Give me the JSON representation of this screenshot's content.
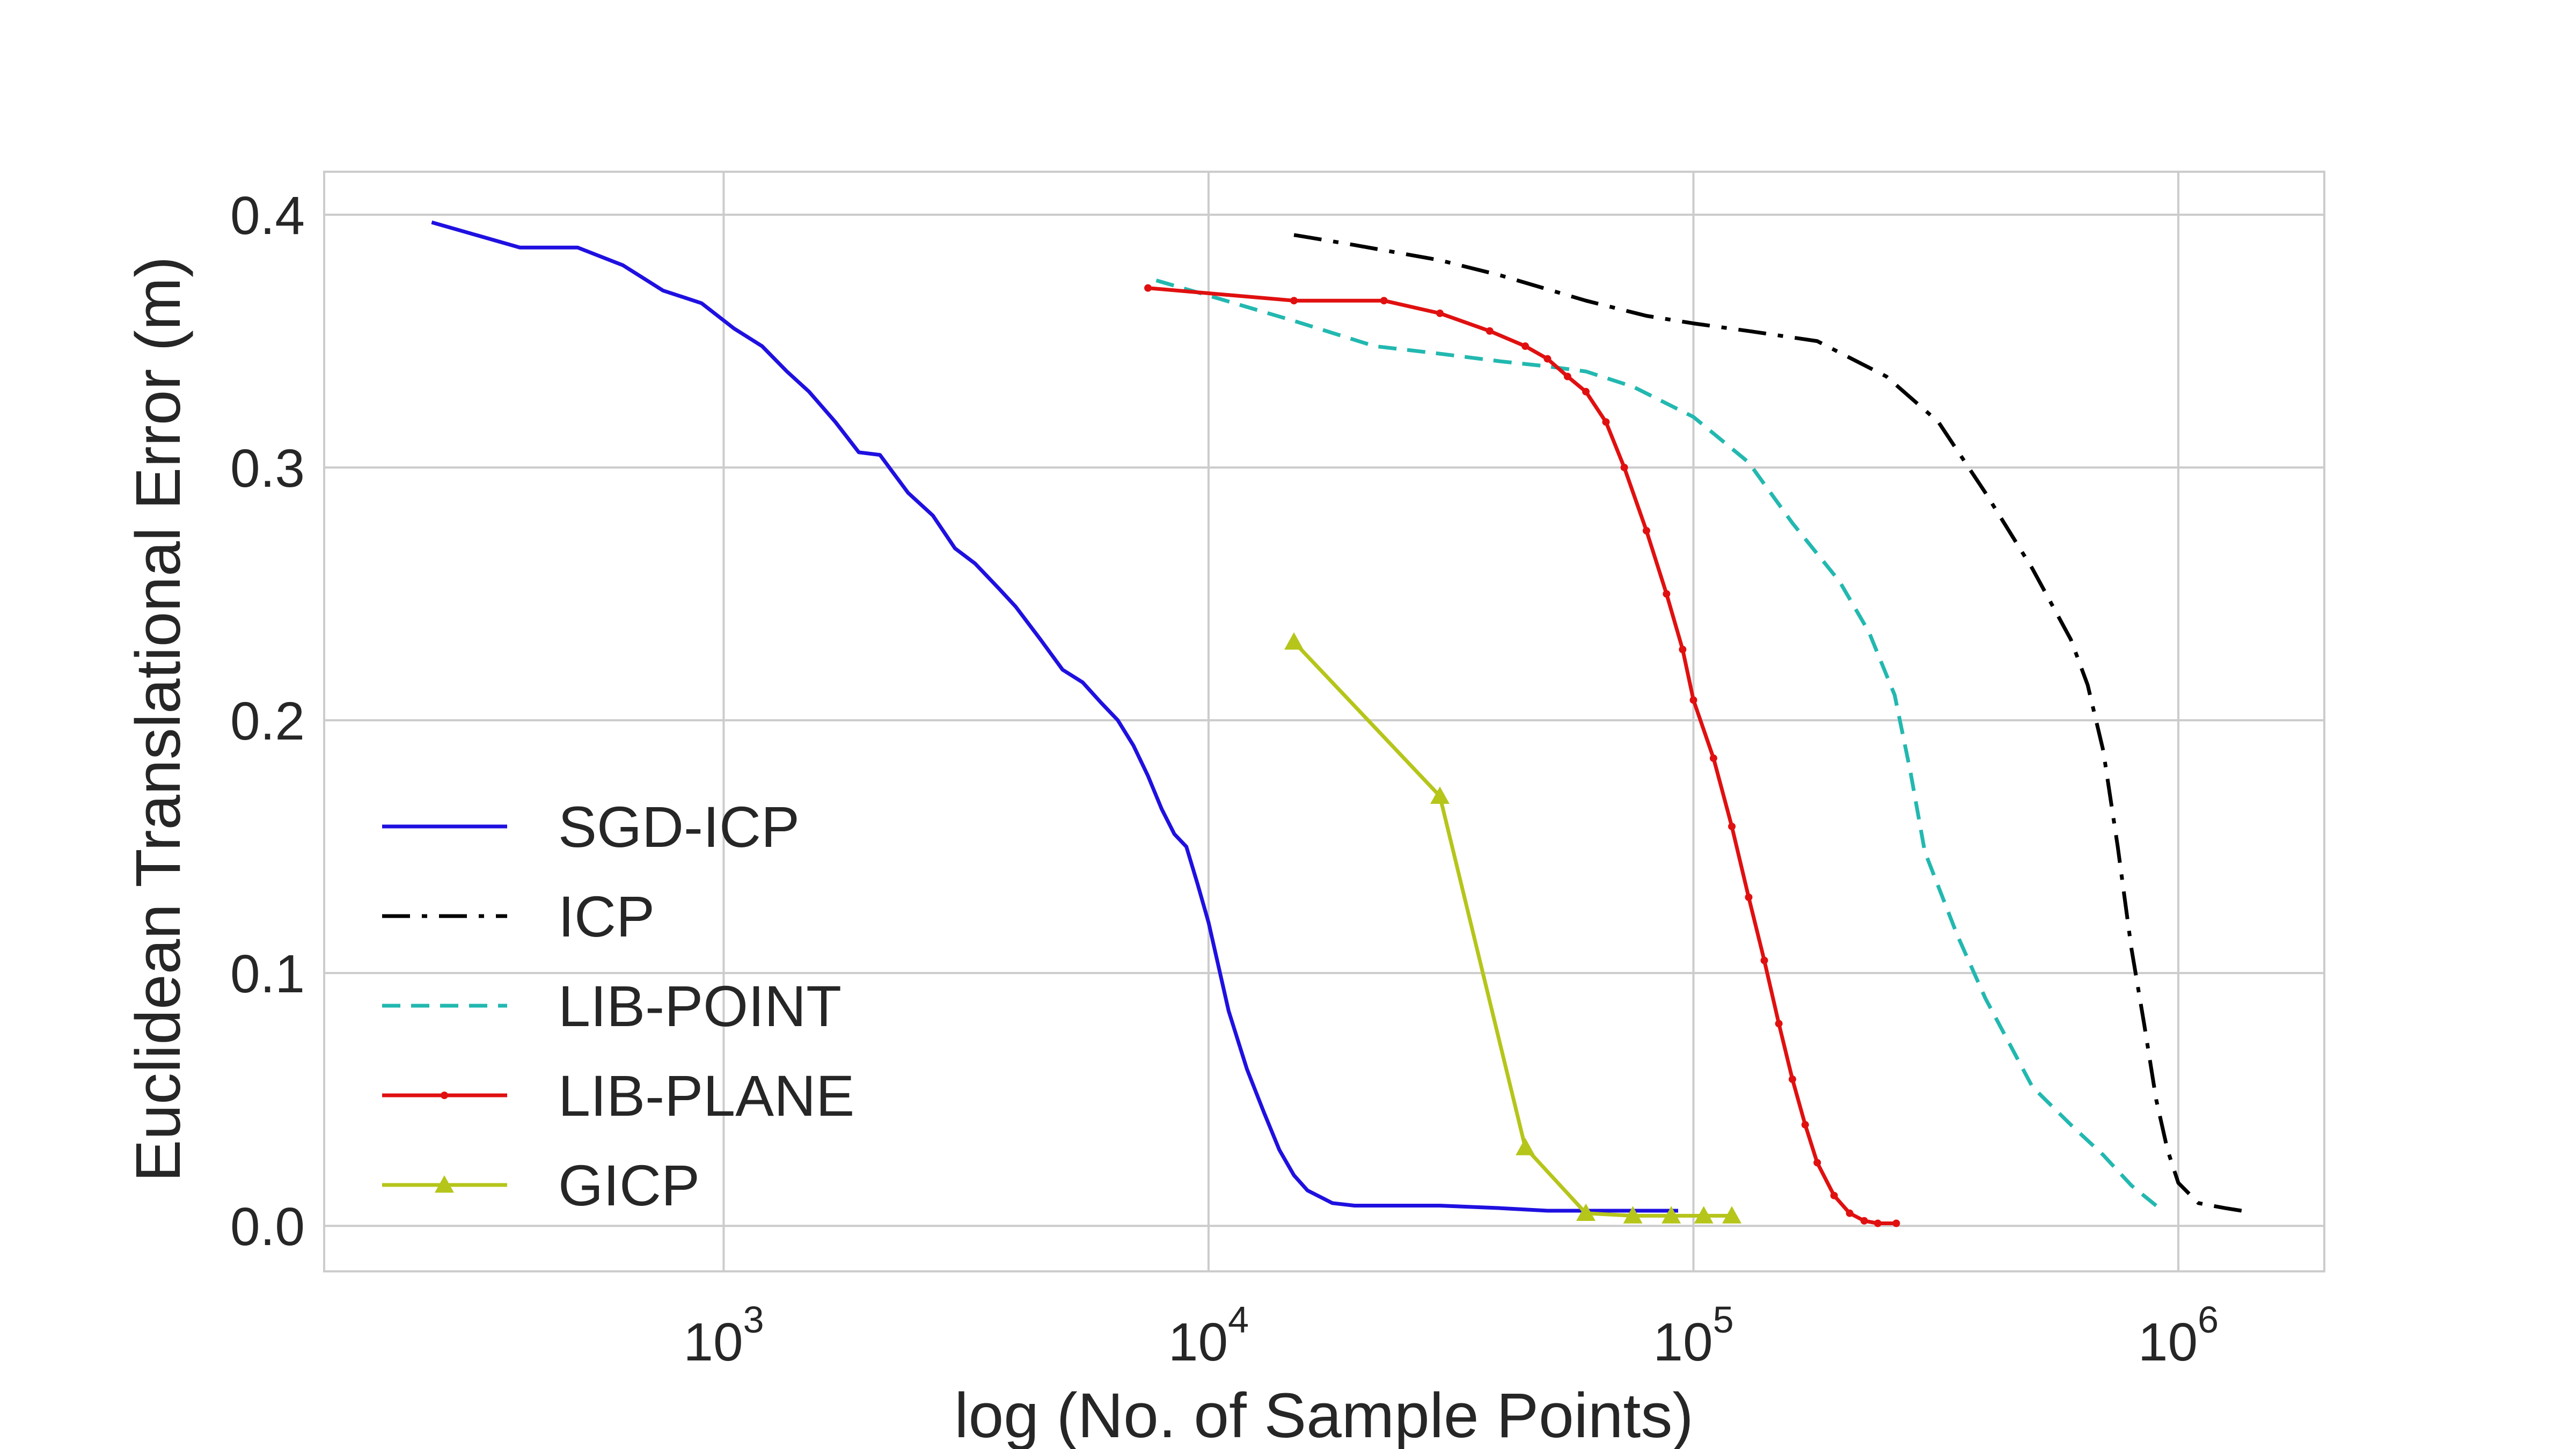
{
  "chart_data": {
    "type": "line",
    "title": "",
    "xlabel": "log (No. of Sample Points)",
    "ylabel": "Euclidean Translational Error (m)",
    "xscale": "log",
    "xlim": [
      150,
      2000000
    ],
    "ylim": [
      -0.018,
      0.417
    ],
    "x_ticks": [
      {
        "base": "10",
        "exp": "3",
        "value": 1000
      },
      {
        "base": "10",
        "exp": "4",
        "value": 10000
      },
      {
        "base": "10",
        "exp": "5",
        "value": 100000
      },
      {
        "base": "10",
        "exp": "6",
        "value": 1000000
      }
    ],
    "y_ticks": [
      {
        "label": "0.0",
        "value": 0.0
      },
      {
        "label": "0.1",
        "value": 0.1
      },
      {
        "label": "0.2",
        "value": 0.2
      },
      {
        "label": "0.3",
        "value": 0.3
      },
      {
        "label": "0.4",
        "value": 0.4
      }
    ],
    "grid": true,
    "legend_position": "lower-left",
    "series": [
      {
        "name": "SGD-ICP",
        "color": "#1f10e0",
        "style": "solid",
        "marker": "none",
        "x": [
          250,
          380,
          500,
          620,
          750,
          900,
          1050,
          1200,
          1350,
          1500,
          1700,
          1900,
          2100,
          2400,
          2700,
          3000,
          3300,
          3700,
          4000,
          4500,
          5000,
          5500,
          6000,
          6500,
          7000,
          7500,
          8000,
          8500,
          9000,
          9500,
          10000,
          11000,
          12000,
          13000,
          14000,
          15000,
          16000,
          18000,
          20000,
          25000,
          30000,
          40000,
          50000,
          60000,
          70000,
          80000,
          93000
        ],
        "y": [
          0.397,
          0.387,
          0.387,
          0.38,
          0.37,
          0.365,
          0.355,
          0.348,
          0.338,
          0.33,
          0.318,
          0.306,
          0.305,
          0.29,
          0.281,
          0.268,
          0.262,
          0.252,
          0.245,
          0.232,
          0.22,
          0.215,
          0.207,
          0.2,
          0.19,
          0.178,
          0.165,
          0.155,
          0.15,
          0.135,
          0.12,
          0.085,
          0.062,
          0.045,
          0.03,
          0.02,
          0.014,
          0.009,
          0.008,
          0.008,
          0.008,
          0.007,
          0.006,
          0.006,
          0.006,
          0.006,
          0.006
        ]
      },
      {
        "name": "ICP",
        "color": "#000000",
        "style": "dashdot",
        "marker": "none",
        "x": [
          15000,
          20000,
          30000,
          40000,
          60000,
          80000,
          100000,
          130000,
          180000,
          250000,
          320000,
          400000,
          500000,
          600000,
          650000,
          700000,
          750000,
          800000,
          850000,
          900000,
          950000,
          1000000,
          1100000,
          1250000,
          1350000
        ],
        "y": [
          0.392,
          0.388,
          0.382,
          0.376,
          0.366,
          0.36,
          0.357,
          0.354,
          0.35,
          0.336,
          0.318,
          0.29,
          0.26,
          0.232,
          0.214,
          0.188,
          0.15,
          0.11,
          0.08,
          0.05,
          0.03,
          0.017,
          0.009,
          0.007,
          0.006
        ]
      },
      {
        "name": "LIB-POINT",
        "color": "#22b8b0",
        "style": "dashed",
        "marker": "none",
        "x": [
          7800,
          10000,
          15000,
          22000,
          30000,
          40000,
          50000,
          60000,
          75000,
          100000,
          130000,
          160000,
          200000,
          230000,
          260000,
          280000,
          300000,
          350000,
          400000,
          500000,
          600000,
          700000,
          800000,
          900000
        ],
        "y": [
          0.374,
          0.368,
          0.358,
          0.348,
          0.345,
          0.342,
          0.34,
          0.338,
          0.332,
          0.32,
          0.302,
          0.278,
          0.255,
          0.235,
          0.21,
          0.18,
          0.148,
          0.115,
          0.09,
          0.055,
          0.04,
          0.028,
          0.016,
          0.008
        ]
      },
      {
        "name": "LIB-PLANE",
        "color": "#e01010",
        "style": "solid",
        "marker": "dot",
        "x": [
          7500,
          15000,
          23000,
          30000,
          38000,
          45000,
          50000,
          55000,
          60000,
          66000,
          72000,
          80000,
          88000,
          95000,
          100000,
          110000,
          120000,
          130000,
          140000,
          150000,
          160000,
          170000,
          180000,
          195000,
          210000,
          225000,
          240000,
          262000
        ],
        "y": [
          0.371,
          0.366,
          0.366,
          0.361,
          0.354,
          0.348,
          0.343,
          0.336,
          0.33,
          0.318,
          0.3,
          0.275,
          0.25,
          0.228,
          0.208,
          0.185,
          0.158,
          0.13,
          0.105,
          0.08,
          0.058,
          0.04,
          0.025,
          0.012,
          0.005,
          0.002,
          0.001,
          0.001
        ]
      },
      {
        "name": "GICP",
        "color": "#b5c51a",
        "style": "solid",
        "marker": "triangle",
        "x": [
          15000,
          30000,
          45000,
          60000,
          75000,
          90000,
          105000,
          120000
        ],
        "y": [
          0.231,
          0.17,
          0.031,
          0.005,
          0.004,
          0.004,
          0.004,
          0.004
        ]
      }
    ]
  }
}
